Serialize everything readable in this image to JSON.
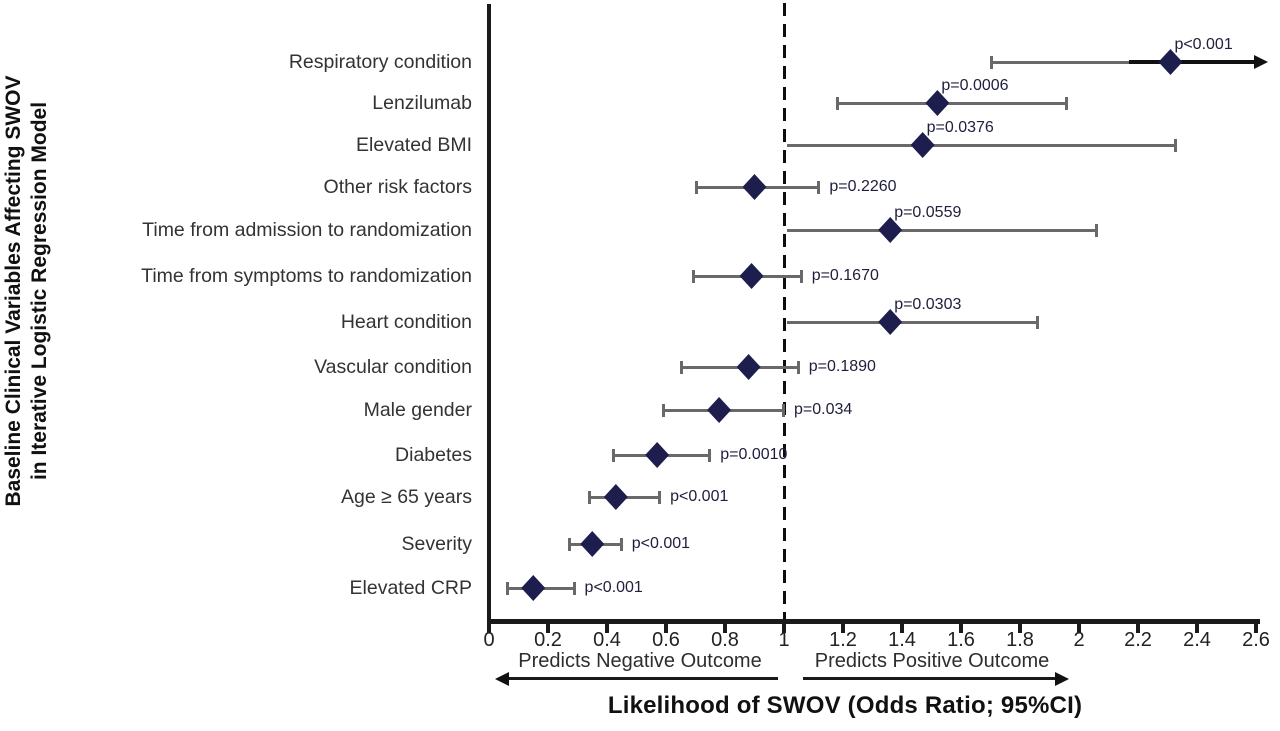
{
  "colors": {
    "diamond": "#1e1e4e",
    "error_bar": "#696969",
    "axis": "#1a1a1a",
    "p_text": "#20203d",
    "category_text": "#333333",
    "background": "#ffffff"
  },
  "chart_data": {
    "type": "scatter",
    "variant": "forest-plot",
    "title": "Likelihood of SWOV (Odds Ratio; 95%CI)",
    "ylabel": [
      "Baseline Clinical Variables Affecting SWOV",
      "in Iterative Logistic Regression Model"
    ],
    "x_axis": {
      "min": 0,
      "max": 2.6,
      "tick_labels": [
        "0",
        "0.2",
        "0.4",
        "0.6",
        "0.8",
        "1",
        "1.2",
        "1.4",
        "1.6",
        "1.8",
        "2",
        "2.2",
        "2.4",
        "2.6"
      ],
      "reference_line_x": 1,
      "grid": false
    },
    "direction_labels": {
      "negative": "Predicts Negative Outcome",
      "positive": "Predicts Positive Outcome"
    },
    "rows": [
      {
        "label": "Respiratory condition",
        "or": 2.31,
        "ci_low": 1.7,
        "ci_high": 2.62,
        "ci_high_offscale": true,
        "p": "p<0.001"
      },
      {
        "label": "Lenzilumab",
        "or": 1.52,
        "ci_low": 1.18,
        "ci_high": 1.96,
        "ci_high_offscale": false,
        "p": "p=0.0006"
      },
      {
        "label": "Elevated BMI",
        "or": 1.47,
        "ci_low": 1.01,
        "ci_high": 2.33,
        "ci_high_offscale": false,
        "p": "p=0.0376"
      },
      {
        "label": "Other risk factors",
        "or": 0.9,
        "ci_low": 0.7,
        "ci_high": 1.12,
        "ci_high_offscale": false,
        "p": "p=0.2260"
      },
      {
        "label": "Time from admission to randomization",
        "or": 1.36,
        "ci_low": 1.01,
        "ci_high": 2.06,
        "ci_high_offscale": false,
        "p": "p=0.0559"
      },
      {
        "label": "Time from symptoms to randomization",
        "or": 0.89,
        "ci_low": 0.69,
        "ci_high": 1.06,
        "ci_high_offscale": false,
        "p": "p=0.1670"
      },
      {
        "label": "Heart condition",
        "or": 1.36,
        "ci_low": 1.01,
        "ci_high": 1.86,
        "ci_high_offscale": false,
        "p": "p=0.0303"
      },
      {
        "label": "Vascular condition",
        "or": 0.88,
        "ci_low": 0.65,
        "ci_high": 1.05,
        "ci_high_offscale": false,
        "p": "p=0.1890"
      },
      {
        "label": "Male gender",
        "or": 0.78,
        "ci_low": 0.59,
        "ci_high": 1.0,
        "ci_high_offscale": false,
        "p": "p=0.034"
      },
      {
        "label": "Diabetes",
        "or": 0.57,
        "ci_low": 0.42,
        "ci_high": 0.75,
        "ci_high_offscale": false,
        "p": "p=0.0010"
      },
      {
        "label": "Age ≥ 65 years",
        "or": 0.43,
        "ci_low": 0.34,
        "ci_high": 0.58,
        "ci_high_offscale": false,
        "p": "p<0.001"
      },
      {
        "label": "Severity",
        "or": 0.35,
        "ci_low": 0.27,
        "ci_high": 0.45,
        "ci_high_offscale": false,
        "p": "p<0.001"
      },
      {
        "label": "Elevated CRP",
        "or": 0.15,
        "ci_low": 0.06,
        "ci_high": 0.29,
        "ci_high_offscale": false,
        "p": "p<0.001"
      }
    ]
  }
}
